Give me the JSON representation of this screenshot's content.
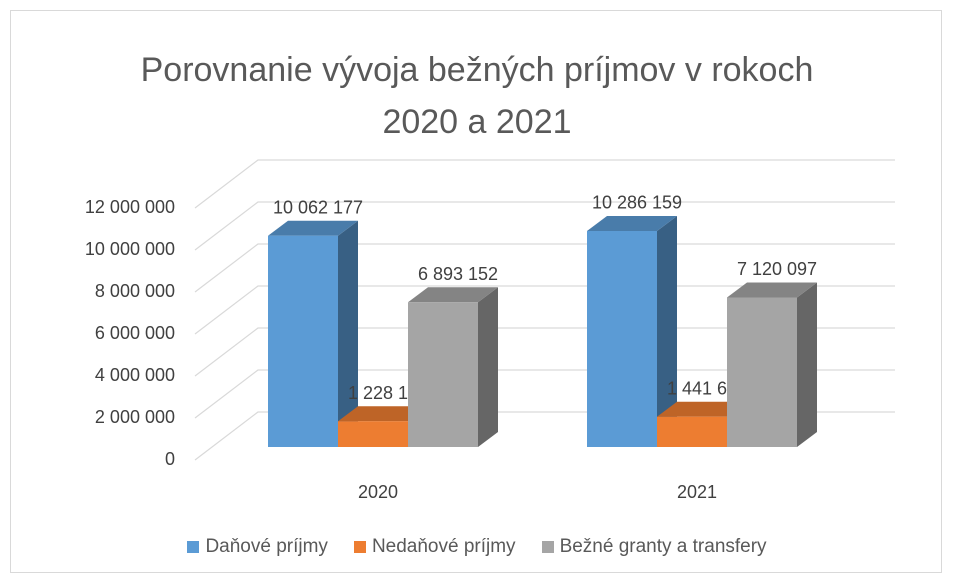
{
  "chart_data": {
    "type": "bar3d",
    "title": "Porovnanie vývoja bežných príjmov v rokoch 2020 a 2021",
    "categories": [
      "2020",
      "2021"
    ],
    "series": [
      {
        "name": "Daňové príjmy",
        "color": "#5b9bd5",
        "values": [
          10062177,
          10286159
        ],
        "value_labels": [
          "10 062 177",
          "10 286 159"
        ]
      },
      {
        "name": "Nedaňové príjmy",
        "color": "#ed7d31",
        "values": [
          1228161,
          1441650
        ],
        "value_labels": [
          "1 228 161",
          "1 441 650"
        ]
      },
      {
        "name": "Bežné granty a transfery",
        "color": "#a5a5a5",
        "values": [
          6893152,
          7120097
        ],
        "value_labels": [
          "6 893 152",
          "7 120 097"
        ]
      }
    ],
    "ylim": [
      0,
      12000000
    ],
    "yticks": [
      0,
      {
        "value": 2000000,
        "label": "2 000 000"
      },
      {
        "value": 4000000,
        "label": "4 000 000"
      },
      {
        "value": 6000000,
        "label": "6 000 000"
      },
      {
        "value": 8000000,
        "label": "8 000 000"
      },
      {
        "value": 10000000,
        "label": "10 000 000"
      },
      {
        "value": 12000000,
        "label": "12 000 000"
      }
    ],
    "grid": true,
    "legend": "bottom"
  }
}
